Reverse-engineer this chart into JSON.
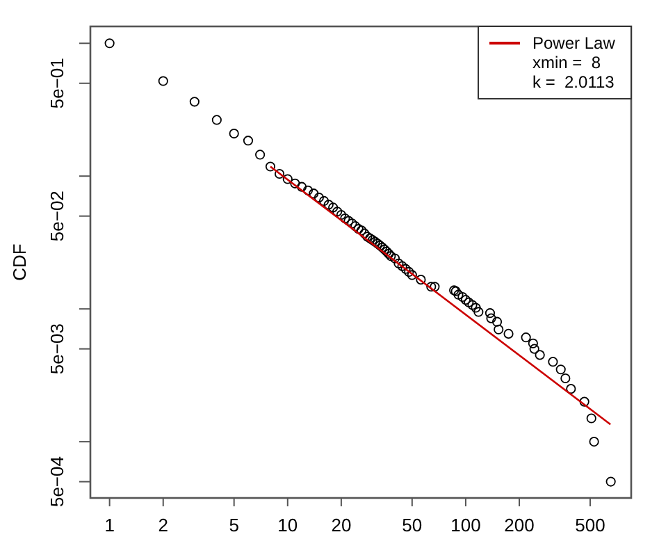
{
  "chart_data": {
    "type": "scatter",
    "ylabel": "CDF",
    "log": "xy",
    "grid": false,
    "legend": "top right",
    "xlim": [
      0.78,
      850
    ],
    "ylim": [
      0.000377,
      1.34
    ],
    "xticks": [
      1,
      2,
      5,
      10,
      20,
      50,
      100,
      200,
      500
    ],
    "yticks": [
      {
        "value": 1,
        "label": null
      },
      {
        "value": 0.5,
        "label": "5e−01"
      },
      {
        "value": 0.1,
        "label": null
      },
      {
        "value": 0.05,
        "label": "5e−02"
      },
      {
        "value": 0.01,
        "label": null
      },
      {
        "value": 0.005,
        "label": "5e−03"
      },
      {
        "value": 0.001,
        "label": null
      },
      {
        "value": 0.0005,
        "label": "5e−04"
      }
    ],
    "annotations": [
      "xmin =  8",
      "k =  2.0113"
    ],
    "series": [
      {
        "marker": "circle",
        "color": "#000000",
        "x": [
          1,
          2,
          3,
          4,
          5,
          6,
          7,
          8,
          9,
          10,
          11,
          12,
          13,
          14,
          15,
          16,
          17,
          18,
          19,
          20,
          21,
          22,
          23,
          24,
          25,
          26,
          27,
          28,
          29,
          30,
          31,
          32,
          33,
          34,
          35,
          36,
          37,
          38,
          40,
          42,
          44,
          46,
          48,
          50,
          56,
          64,
          67,
          86,
          88,
          91,
          96,
          100,
          104,
          109,
          114,
          118,
          137,
          139,
          150,
          153,
          174,
          218,
          239,
          243,
          261,
          309,
          342,
          363,
          390,
          464,
          508,
          526,
          653
        ],
        "values": [
          1,
          0.52,
          0.363,
          0.265,
          0.209,
          0.185,
          0.145,
          0.118,
          0.104,
          0.095,
          0.088,
          0.083,
          0.078,
          0.074,
          0.069,
          0.065,
          0.061,
          0.058,
          0.054,
          0.051,
          0.048,
          0.046,
          0.044,
          0.042,
          0.04,
          0.039,
          0.037,
          0.035,
          0.034,
          0.033,
          0.032,
          0.031,
          0.03,
          0.029,
          0.028,
          0.027,
          0.026,
          0.025,
          0.024,
          0.022,
          0.021,
          0.02,
          0.019,
          0.018,
          0.0166,
          0.0147,
          0.0147,
          0.0138,
          0.0136,
          0.0128,
          0.0123,
          0.0117,
          0.0112,
          0.0107,
          0.0102,
          0.0095,
          0.0093,
          0.0085,
          0.008,
          0.007,
          0.0065,
          0.0061,
          0.0055,
          0.005,
          0.0045,
          0.004,
          0.0035,
          0.003,
          0.0025,
          0.002,
          0.0015,
          0.001,
          0.0005
        ]
      },
      {
        "type": "line",
        "marker": "none",
        "name": "Power Law",
        "color": "#cc0000",
        "x": [
          8,
          650
        ],
        "values": [
          0.118,
          0.00135
        ]
      }
    ]
  }
}
